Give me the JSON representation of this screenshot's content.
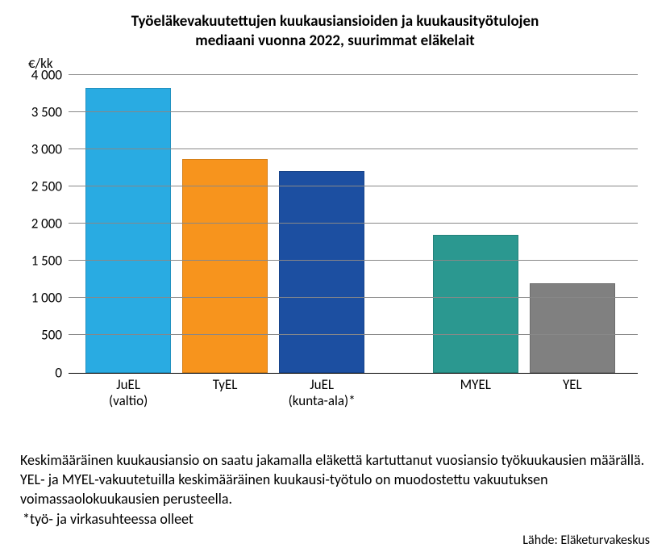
{
  "chart": {
    "type": "bar",
    "title_line1": "Työeläkevakuutettujen kuukausiansioiden ja kuukausityötulojen",
    "title_line2": "mediaani vuonna 2022, suurimmat eläkelait",
    "title_fontsize": 19,
    "ylabel": "€/kk",
    "ylim": [
      0,
      4000
    ],
    "ytick_step": 500,
    "yticks": [
      "0",
      "500",
      "1 000",
      "1 500",
      "2 000",
      "2 500",
      "3 000",
      "3 500",
      "4 000"
    ],
    "grid_color": "#888888",
    "background_color": "#ffffff",
    "bars": [
      {
        "label": "JuEL\n(valtio)",
        "value": 3820,
        "color": "#29abe2",
        "left_pct": 3,
        "width_pct": 15
      },
      {
        "label": "TyEL",
        "value": 2870,
        "color": "#f7941d",
        "left_pct": 20,
        "width_pct": 15
      },
      {
        "label": "JuEL\n(kunta-ala)*",
        "value": 2700,
        "color": "#1c4fa1",
        "left_pct": 37,
        "width_pct": 15
      },
      {
        "label": "MYEL",
        "value": 1850,
        "color": "#2b9890",
        "left_pct": 64,
        "width_pct": 15
      },
      {
        "label": "YEL",
        "value": 1200,
        "color": "#808080",
        "left_pct": 81,
        "width_pct": 15
      }
    ],
    "bar_width": 0.7,
    "label_fontsize": 17
  },
  "footnote": {
    "text": "Keskimääräinen kuukausiansio on saatu jakamalla eläkettä kartuttanut vuosiansio työkuukausien määrällä. YEL- ja MYEL-vakuutetuilla keskimääräinen kuukausi-työtulo on muodostettu vakuutuksen voimassaolokuukausien perusteella.",
    "sub": "*työ- ja virkasuhteessa olleet",
    "fontsize": 18
  },
  "source": {
    "label": "Lähde: Eläketurvakeskus",
    "fontsize": 16
  }
}
